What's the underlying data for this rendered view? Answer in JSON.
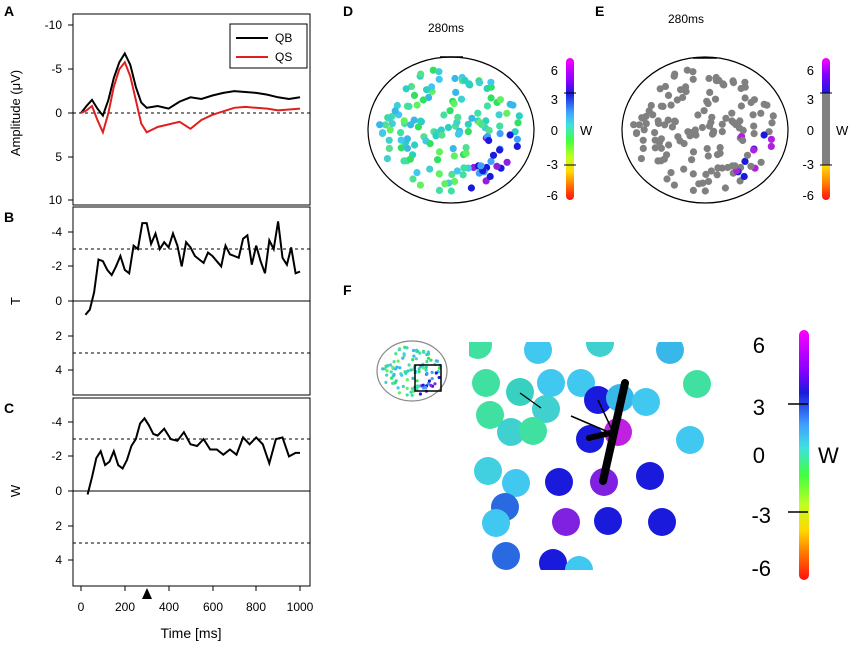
{
  "chart_data": [
    {
      "panel": "A",
      "type": "line",
      "title": "",
      "ylabel": "Amplitude (μV)",
      "xlabel": "",
      "ylim": [
        10,
        -10
      ],
      "yticks": [
        "-10",
        "-5",
        "0",
        "5",
        "10"
      ],
      "ytick_values": [
        -10,
        -5,
        0,
        5,
        10
      ],
      "reference_lines": [
        0
      ],
      "legend": "top-right",
      "series": [
        {
          "name": "QB",
          "color": "#000000",
          "x": [
            0,
            25,
            50,
            75,
            100,
            125,
            150,
            175,
            200,
            225,
            250,
            275,
            300,
            350,
            400,
            450,
            500,
            550,
            600,
            650,
            700,
            750,
            800,
            850,
            900,
            950,
            1000
          ],
          "y": [
            0,
            -0.8,
            -1.5,
            -0.5,
            0.3,
            -1.5,
            -4,
            -5.8,
            -6.8,
            -5.5,
            -3,
            -1.2,
            -0.6,
            -0.8,
            -0.5,
            -1.3,
            -1.8,
            -1.6,
            -2.0,
            -2.3,
            -2.5,
            -2.4,
            -2.3,
            -2.1,
            -1.8,
            -1.6,
            -1.8
          ]
        },
        {
          "name": "QS",
          "color": "#e02020",
          "x": [
            0,
            25,
            50,
            75,
            100,
            125,
            150,
            175,
            200,
            225,
            250,
            275,
            300,
            350,
            400,
            450,
            500,
            550,
            600,
            650,
            700,
            750,
            800,
            850,
            900,
            950,
            1000
          ],
          "y": [
            0,
            -0.3,
            -0.8,
            0.8,
            2.2,
            0,
            -3,
            -5,
            -5.8,
            -4.2,
            -1.5,
            1.2,
            2.2,
            1.6,
            1.3,
            1.0,
            1.8,
            0.8,
            0.2,
            -0.2,
            -0.6,
            -0.7,
            -0.6,
            -0.5,
            -0.3,
            -0.4,
            -0.5
          ]
        }
      ]
    },
    {
      "panel": "B",
      "type": "line",
      "ylabel": "T",
      "ylim": [
        5,
        -5
      ],
      "yticks": [
        "-4",
        "-2",
        "0",
        "2",
        "4"
      ],
      "ytick_values": [
        -4,
        -2,
        0,
        2,
        4
      ],
      "reference_lines": [
        0
      ],
      "threshold_lines": [
        -3,
        3
      ],
      "series": [
        {
          "name": "T",
          "color": "#000000",
          "x": [
            20,
            40,
            60,
            80,
            100,
            120,
            140,
            160,
            180,
            200,
            220,
            240,
            260,
            280,
            300,
            320,
            340,
            360,
            380,
            400,
            420,
            440,
            460,
            480,
            500,
            520,
            540,
            560,
            580,
            600,
            620,
            640,
            660,
            680,
            700,
            720,
            740,
            760,
            780,
            800,
            820,
            840,
            860,
            880,
            900,
            920,
            940,
            960,
            980,
            1000
          ],
          "y": [
            0.8,
            0.5,
            -0.5,
            -2.4,
            -2.3,
            -1.8,
            -1.5,
            -2.0,
            -2.6,
            -1.8,
            -1.6,
            -3.2,
            -3.0,
            -4.5,
            -4.5,
            -3.3,
            -3.9,
            -3.0,
            -3.4,
            -3.1,
            -3.9,
            -3.2,
            -2.0,
            -3.4,
            -3.1,
            -2.6,
            -2.4,
            -2.2,
            -2.8,
            -2.6,
            -2.3,
            -2.0,
            -3.2,
            -2.7,
            -2.6,
            -2.5,
            -3.6,
            -3.8,
            -2.1,
            -3.2,
            -2.3,
            -1.6,
            -3.5,
            -3.0,
            -4.6,
            -2.5,
            -2.1,
            -3.1,
            -1.6,
            -1.7
          ]
        }
      ]
    },
    {
      "panel": "C",
      "type": "line",
      "ylabel": "W",
      "xlabel": "Time [ms]",
      "ylim": [
        5,
        -5
      ],
      "yticks": [
        "-4",
        "-2",
        "0",
        "2",
        "4"
      ],
      "ytick_values": [
        -4,
        -2,
        0,
        2,
        4
      ],
      "xticks": [
        "0",
        "200",
        "400",
        "600",
        "800",
        "1000"
      ],
      "xtick_values": [
        0,
        200,
        400,
        600,
        800,
        1000
      ],
      "reference_lines": [
        0
      ],
      "threshold_lines": [
        -3,
        3
      ],
      "marker_time_ms": 280,
      "series": [
        {
          "name": "W",
          "color": "#000000",
          "x": [
            30,
            50,
            70,
            90,
            110,
            130,
            150,
            170,
            190,
            210,
            230,
            250,
            270,
            290,
            310,
            330,
            350,
            380,
            410,
            440,
            470,
            500,
            530,
            560,
            590,
            620,
            650,
            680,
            710,
            740,
            770,
            800,
            830,
            860,
            890,
            920,
            950,
            980,
            1000
          ],
          "y": [
            0.2,
            -0.8,
            -1.9,
            -2.3,
            -1.5,
            -1.7,
            -2.3,
            -1.5,
            -1.3,
            -1.8,
            -2.6,
            -3.0,
            -3.9,
            -4.2,
            -3.8,
            -3.3,
            -3.2,
            -3.6,
            -3.0,
            -2.9,
            -3.4,
            -2.7,
            -2.6,
            -3.0,
            -2.4,
            -2.4,
            -2.1,
            -2.4,
            -2.1,
            -3.1,
            -2.7,
            -3.1,
            -2.7,
            -1.6,
            -3.0,
            -3.1,
            -2.0,
            -2.2,
            -2.2
          ]
        }
      ]
    },
    {
      "panel": "D",
      "type": "scatter",
      "title": "280ms",
      "colorbar_label": "W",
      "colorbar_ticks": [
        "6",
        "3",
        "0",
        "-3",
        "-6"
      ]
    },
    {
      "panel": "E",
      "type": "scatter",
      "title": "280ms",
      "colorbar_label": "W",
      "colorbar_ticks": [
        "6",
        "3",
        "0",
        "-3",
        "-6"
      ]
    },
    {
      "panel": "F",
      "type": "scatter",
      "colorbar_label": "W",
      "colorbar_ticks": [
        "6",
        "3",
        "0",
        "-3",
        "-6"
      ]
    }
  ],
  "panel_labels": [
    "A",
    "B",
    "C",
    "D",
    "E",
    "F"
  ],
  "legend": {
    "qb": "QB",
    "qs": "QS"
  }
}
